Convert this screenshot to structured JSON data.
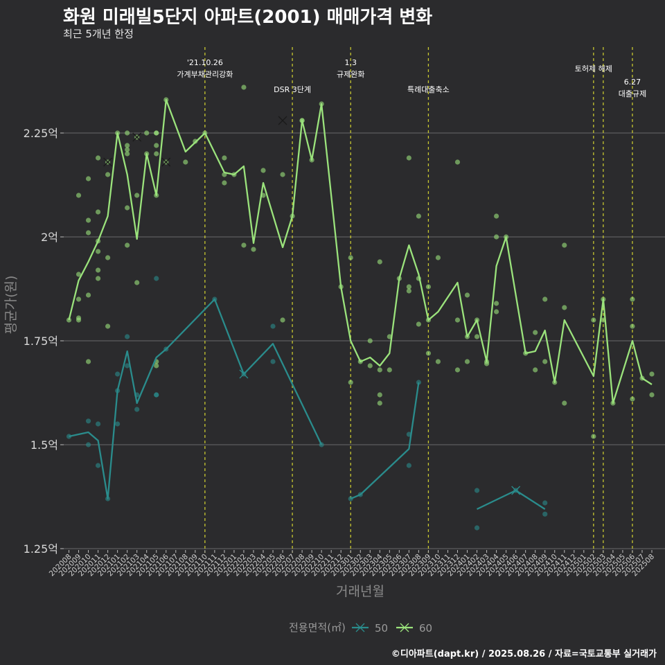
{
  "title": "화원 미래빌5단지 아파트(2001) 매매가격 변화",
  "subtitle": "최근 5개년 한정",
  "caption": "©디아파트(dapt.kr) / 2025.08.26 / 자료=국토교통부 실거래가",
  "colors": {
    "background": "#2b2b2d",
    "grid": "#6a6a6a",
    "vline": "#c8c830",
    "s50": "#2a8c8c",
    "s60": "#9be37c"
  },
  "chart_data": {
    "type": "line",
    "xlabel": "거래년월",
    "ylabel": "평균가(원)",
    "ylim": [
      1.25,
      2.5
    ],
    "yticks": [
      1.25,
      1.5,
      1.75,
      2.0,
      2.25
    ],
    "ytick_labels": [
      "1.25억",
      "1.5억",
      "1.75억",
      "2억",
      "2.25억"
    ],
    "x": [
      "202008",
      "202009",
      "202010",
      "202011",
      "202012",
      "202101",
      "202102",
      "202103",
      "202104",
      "202105",
      "202106",
      "202107",
      "202108",
      "202109",
      "202110",
      "202111",
      "202112",
      "202201",
      "202202",
      "202203",
      "202204",
      "202205",
      "202206",
      "202207",
      "202208",
      "202209",
      "202210",
      "202211",
      "202212",
      "202301",
      "202302",
      "202303",
      "202304",
      "202305",
      "202306",
      "202307",
      "202308",
      "202309",
      "202310",
      "202311",
      "202312",
      "202401",
      "202402",
      "202403",
      "202404",
      "202405",
      "202406",
      "202407",
      "202408",
      "202409",
      "202410",
      "202411",
      "202412",
      "202501",
      "202502",
      "202503",
      "202504",
      "202505",
      "202506",
      "202507",
      "202508"
    ],
    "legend_title": "전용면적(㎡)",
    "annotations": [
      {
        "x": "202110",
        "lines": [
          "'21.10.26",
          "가계부채관리강화"
        ],
        "row": 0
      },
      {
        "x": "202207",
        "lines": [
          "DSR 3단계"
        ],
        "row": 1
      },
      {
        "x": "202301",
        "lines": [
          "1.3",
          "규제완화"
        ],
        "row": 0
      },
      {
        "x": "202309",
        "lines": [
          "특례대출축소"
        ],
        "row": 1
      },
      {
        "x": "202502",
        "lines": [
          "토허제 해제"
        ],
        "row": 0
      },
      {
        "x": "202503",
        "lines": [],
        "row": 0
      },
      {
        "x": "202506",
        "lines": [
          "6.27",
          "대출규제"
        ],
        "row": 1
      }
    ],
    "series": [
      {
        "name": "50",
        "color": "#2a8c8c",
        "line": [
          [
            0,
            1.52
          ],
          [
            2,
            1.53
          ],
          [
            3,
            1.51
          ],
          [
            4,
            1.37
          ],
          [
            5,
            1.63
          ],
          [
            6,
            1.725
          ],
          [
            7,
            1.6
          ],
          [
            9,
            1.71
          ],
          [
            10,
            1.73
          ],
          [
            15,
            1.85
          ],
          [
            18,
            1.67
          ],
          [
            21,
            1.743
          ],
          [
            26,
            1.5
          ],
          [
            null,
            null
          ],
          [
            29,
            1.37
          ],
          [
            30,
            1.38
          ],
          [
            35,
            1.49
          ],
          [
            36,
            1.65
          ],
          [
            null,
            null
          ],
          [
            42,
            1.345
          ],
          [
            46,
            1.39
          ],
          [
            49,
            1.345
          ]
        ],
        "points": [
          [
            0,
            1.52
          ],
          [
            2,
            1.557
          ],
          [
            2,
            1.5
          ],
          [
            3,
            1.55
          ],
          [
            3,
            1.45
          ],
          [
            4,
            1.37
          ],
          [
            5,
            1.63
          ],
          [
            5,
            1.55
          ],
          [
            5,
            1.67
          ],
          [
            6,
            1.76
          ],
          [
            6,
            1.69
          ],
          [
            7,
            1.62
          ],
          [
            7,
            1.585
          ],
          [
            9,
            1.9
          ],
          [
            9,
            1.62
          ],
          [
            9,
            1.62
          ],
          [
            10,
            1.73
          ],
          [
            15,
            1.85
          ],
          [
            18,
            1.67
          ],
          [
            21,
            1.7
          ],
          [
            21,
            1.785
          ],
          [
            26,
            1.5
          ],
          [
            29,
            1.37
          ],
          [
            30,
            1.38
          ],
          [
            35,
            1.525
          ],
          [
            35,
            1.45
          ],
          [
            36,
            1.65
          ],
          [
            42,
            1.39
          ],
          [
            42,
            1.3
          ],
          [
            46,
            1.39
          ],
          [
            49,
            1.36
          ],
          [
            49,
            1.333
          ]
        ],
        "cancelled": [
          [
            18,
            1.67
          ],
          [
            46,
            1.39
          ]
        ]
      },
      {
        "name": "60",
        "color": "#9be37c",
        "line": [
          [
            0,
            1.8
          ],
          [
            1,
            1.895
          ],
          [
            2,
            1.94
          ],
          [
            3,
            1.99
          ],
          [
            4,
            2.05
          ],
          [
            5,
            2.25
          ],
          [
            6,
            2.15
          ],
          [
            7,
            1.995
          ],
          [
            8,
            2.2
          ],
          [
            9,
            2.1
          ],
          [
            10,
            2.33
          ],
          [
            12,
            2.205
          ],
          [
            14,
            2.25
          ],
          [
            16,
            2.155
          ],
          [
            17,
            2.15
          ],
          [
            18,
            2.17
          ],
          [
            19,
            1.985
          ],
          [
            20,
            2.13
          ],
          [
            22,
            1.975
          ],
          [
            23,
            2.05
          ],
          [
            24,
            2.28
          ],
          [
            25,
            2.185
          ],
          [
            26,
            2.32
          ],
          [
            28,
            1.88
          ],
          [
            29,
            1.75
          ],
          [
            30,
            1.7
          ],
          [
            31,
            1.71
          ],
          [
            32,
            1.69
          ],
          [
            33,
            1.72
          ],
          [
            34,
            1.9
          ],
          [
            35,
            1.98
          ],
          [
            36,
            1.91
          ],
          [
            37,
            1.8
          ],
          [
            38,
            1.82
          ],
          [
            40,
            1.89
          ],
          [
            41,
            1.76
          ],
          [
            42,
            1.8
          ],
          [
            43,
            1.7
          ],
          [
            44,
            1.93
          ],
          [
            45,
            2.0
          ],
          [
            47,
            1.72
          ],
          [
            48,
            1.725
          ],
          [
            49,
            1.775
          ],
          [
            50,
            1.65
          ],
          [
            51,
            1.8
          ],
          [
            54,
            1.665
          ],
          [
            55,
            1.85
          ],
          [
            56,
            1.6
          ],
          [
            58,
            1.75
          ],
          [
            59,
            1.66
          ],
          [
            60,
            1.645
          ]
        ],
        "points": [
          [
            0,
            1.8
          ],
          [
            1,
            1.91
          ],
          [
            1,
            1.85
          ],
          [
            1,
            1.8
          ],
          [
            1,
            1.805
          ],
          [
            1,
            2.1
          ],
          [
            2,
            2.14
          ],
          [
            2,
            2.04
          ],
          [
            2,
            2.01
          ],
          [
            2,
            1.7
          ],
          [
            2,
            1.86
          ],
          [
            3,
            2.19
          ],
          [
            3,
            2.06
          ],
          [
            3,
            1.99
          ],
          [
            3,
            1.965
          ],
          [
            3,
            1.92
          ],
          [
            3,
            1.9
          ],
          [
            4,
            2.18
          ],
          [
            4,
            2.15
          ],
          [
            4,
            1.95
          ],
          [
            4,
            1.785
          ],
          [
            5,
            2.25
          ],
          [
            6,
            2.25
          ],
          [
            6,
            2.22
          ],
          [
            6,
            2.21
          ],
          [
            6,
            2.2
          ],
          [
            6,
            2.07
          ],
          [
            6,
            1.98
          ],
          [
            7,
            2.1
          ],
          [
            7,
            1.89
          ],
          [
            7,
            2.24
          ],
          [
            8,
            2.25
          ],
          [
            8,
            2.2
          ],
          [
            9,
            2.25
          ],
          [
            9,
            2.25
          ],
          [
            9,
            2.22
          ],
          [
            9,
            2.2
          ],
          [
            9,
            2.1
          ],
          [
            9,
            1.7
          ],
          [
            9,
            1.69
          ],
          [
            10,
            2.33
          ],
          [
            10,
            2.18
          ],
          [
            12,
            2.18
          ],
          [
            13,
            2.23
          ],
          [
            14,
            2.25
          ],
          [
            16,
            2.19
          ],
          [
            16,
            2.15
          ],
          [
            16,
            2.13
          ],
          [
            17,
            2.15
          ],
          [
            18,
            2.36
          ],
          [
            18,
            1.98
          ],
          [
            19,
            1.97
          ],
          [
            20,
            2.16
          ],
          [
            20,
            2.1
          ],
          [
            22,
            2.15
          ],
          [
            22,
            1.8
          ],
          [
            23,
            2.05
          ],
          [
            24,
            2.28
          ],
          [
            24,
            2.28
          ],
          [
            25,
            2.185
          ],
          [
            26,
            2.32
          ],
          [
            28,
            1.88
          ],
          [
            29,
            1.95
          ],
          [
            29,
            1.65
          ],
          [
            30,
            1.7
          ],
          [
            31,
            1.75
          ],
          [
            31,
            1.69
          ],
          [
            32,
            1.94
          ],
          [
            32,
            1.68
          ],
          [
            32,
            1.62
          ],
          [
            32,
            1.6
          ],
          [
            33,
            1.76
          ],
          [
            33,
            1.68
          ],
          [
            34,
            1.9
          ],
          [
            35,
            2.19
          ],
          [
            35,
            1.88
          ],
          [
            35,
            1.87
          ],
          [
            36,
            2.05
          ],
          [
            36,
            1.9
          ],
          [
            36,
            1.79
          ],
          [
            37,
            1.88
          ],
          [
            37,
            1.8
          ],
          [
            37,
            1.72
          ],
          [
            38,
            1.95
          ],
          [
            38,
            1.7
          ],
          [
            40,
            2.18
          ],
          [
            40,
            1.8
          ],
          [
            40,
            1.68
          ],
          [
            41,
            1.86
          ],
          [
            41,
            1.76
          ],
          [
            41,
            1.7
          ],
          [
            42,
            1.8
          ],
          [
            42,
            1.76
          ],
          [
            43,
            1.7
          ],
          [
            43,
            1.695
          ],
          [
            44,
            2.05
          ],
          [
            44,
            2.0
          ],
          [
            44,
            1.84
          ],
          [
            44,
            1.82
          ],
          [
            45,
            2.0
          ],
          [
            47,
            1.72
          ],
          [
            48,
            1.77
          ],
          [
            48,
            1.68
          ],
          [
            49,
            1.85
          ],
          [
            49,
            1.7
          ],
          [
            50,
            1.65
          ],
          [
            51,
            1.98
          ],
          [
            51,
            1.83
          ],
          [
            51,
            1.6
          ],
          [
            54,
            1.8
          ],
          [
            54,
            1.52
          ],
          [
            55,
            1.85
          ],
          [
            55,
            1.8
          ],
          [
            56,
            1.6
          ],
          [
            58,
            1.85
          ],
          [
            58,
            1.785
          ],
          [
            58,
            1.61
          ],
          [
            59,
            1.66
          ],
          [
            60,
            1.67
          ],
          [
            60,
            1.62
          ]
        ],
        "cancelled": [
          [
            4,
            2.18
          ],
          [
            7,
            2.24
          ],
          [
            10,
            2.18
          ],
          [
            22,
            2.28
          ]
        ]
      }
    ]
  }
}
